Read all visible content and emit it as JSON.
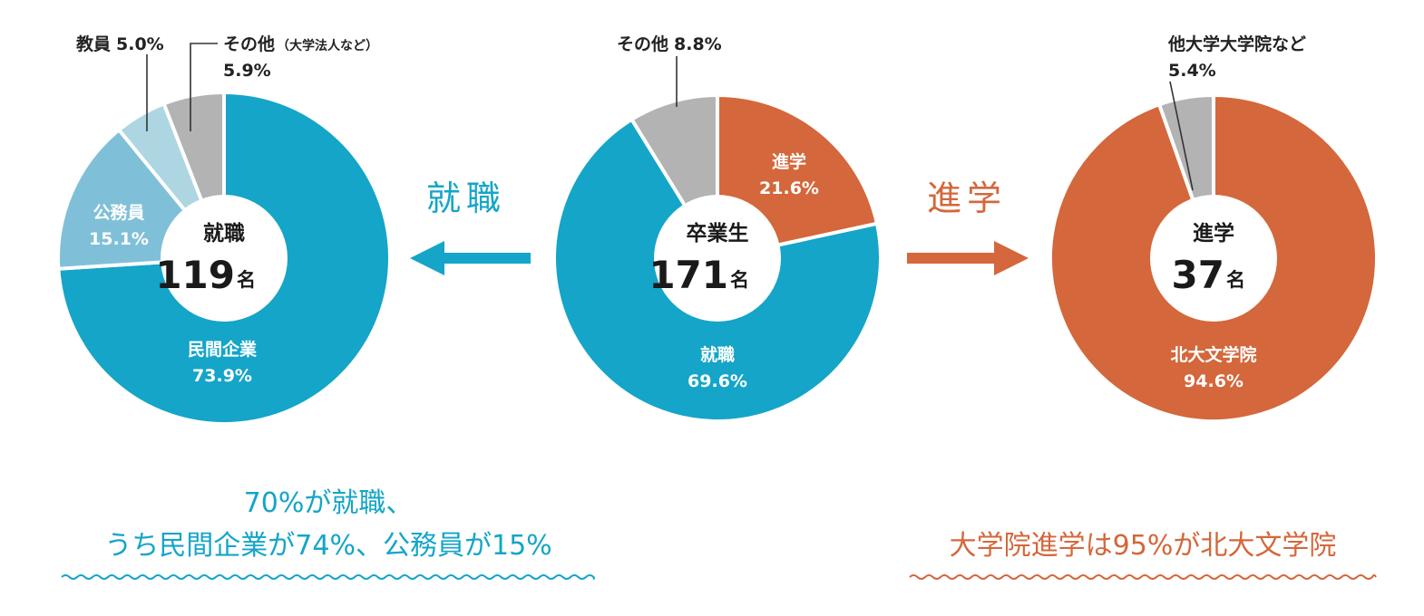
{
  "colors": {
    "blue": "#14a5c8",
    "light_blue": "#7fc0d8",
    "pale_blue": "#add6e2",
    "gray": "#b3b3b3",
    "orange": "#d4673b"
  },
  "chart_data": [
    {
      "type": "pie",
      "id": "employment",
      "center_title": "就職",
      "center_value": "119",
      "center_unit": "名",
      "slices": [
        {
          "label": "民間企業",
          "value_text": "73.9%",
          "value": 73.9,
          "color": "#14a5c8",
          "label_pos": "inside"
        },
        {
          "label": "公務員",
          "value_text": "15.1%",
          "value": 15.1,
          "color": "#7fc0d8",
          "label_pos": "inside"
        },
        {
          "label": "教員",
          "value_text": "5.0%",
          "value": 5.0,
          "color": "#add6e2",
          "label_pos": "outside"
        },
        {
          "label": "その他",
          "sub_label": "（大学法人など）",
          "value_text": "5.9%",
          "value": 5.9,
          "color": "#b3b3b3",
          "label_pos": "outside"
        }
      ]
    },
    {
      "type": "pie",
      "id": "graduates",
      "center_title": "卒業生",
      "center_value": "171",
      "center_unit": "名",
      "slices": [
        {
          "label": "進学",
          "value_text": "21.6%",
          "value": 21.6,
          "color": "#d4673b",
          "label_pos": "inside"
        },
        {
          "label": "就職",
          "value_text": "69.6%",
          "value": 69.6,
          "color": "#14a5c8",
          "label_pos": "inside"
        },
        {
          "label": "その他",
          "value_text": "8.8%",
          "value": 8.8,
          "color": "#b3b3b3",
          "label_pos": "outside"
        }
      ]
    },
    {
      "type": "pie",
      "id": "further-study",
      "center_title": "進学",
      "center_value": "37",
      "center_unit": "名",
      "slices": [
        {
          "label": "北大文学院",
          "value_text": "94.6%",
          "value": 94.6,
          "color": "#d4673b",
          "label_pos": "inside"
        },
        {
          "label": "他大学大学院など",
          "value_text": "5.4%",
          "value": 5.4,
          "color": "#b3b3b3",
          "label_pos": "outside"
        }
      ]
    }
  ],
  "flow": {
    "left_label": "就職",
    "right_label": "進学"
  },
  "captions": {
    "left_line1": "70%が就職、",
    "left_line2": "うち民間企業が74%、公務員が15%",
    "right_line1": "大学院進学は95%が北大文学院"
  }
}
